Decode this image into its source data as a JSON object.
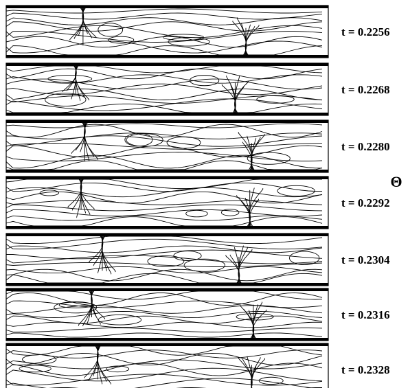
{
  "panels": [
    {
      "label": "t = 0.2256"
    },
    {
      "label": "t = 0.2268"
    },
    {
      "label": "t = 0.2280"
    },
    {
      "label": "t = 0.2292"
    },
    {
      "label": "t = 0.2304"
    },
    {
      "label": "t = 0.2316"
    },
    {
      "label": "t = 0.2328"
    }
  ],
  "field_label": "Θ"
}
